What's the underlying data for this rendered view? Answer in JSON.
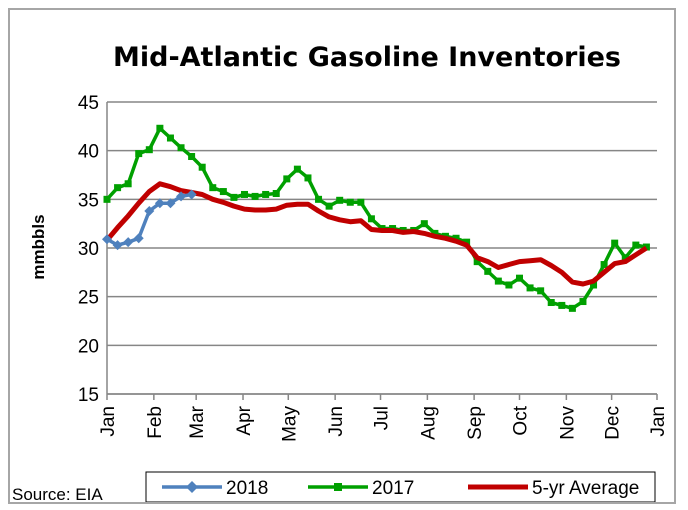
{
  "chart_data": {
    "type": "line",
    "title": "Mid-Atlantic Gasoline Inventories",
    "ylabel": "mmbbls",
    "xlabel": "",
    "ylim": [
      15,
      45
    ],
    "yticks": [
      15,
      20,
      25,
      30,
      35,
      40,
      45
    ],
    "xlim": [
      0,
      52
    ],
    "xtick_labels": [
      "Jan",
      "Feb",
      "Mar",
      "Apr",
      "May",
      "Jun",
      "Jul",
      "Aug",
      "Sep",
      "Oct",
      "Nov",
      "Dec",
      "Jan"
    ],
    "xtick_weeks": [
      0,
      4.43,
      8.43,
      12.86,
      17.14,
      21.57,
      25.86,
      30.29,
      34.71,
      39,
      43.43,
      47.71,
      52
    ],
    "grid": true,
    "legend_position": "bottom",
    "source": "Source: EIA",
    "series": [
      {
        "name": "2018",
        "color": "#4f81bd",
        "marker": "diamond",
        "x": [
          0,
          1,
          2,
          3,
          4,
          5,
          6,
          7,
          8
        ],
        "values": [
          30.9,
          30.3,
          30.6,
          31.0,
          33.8,
          34.6,
          34.6,
          35.3,
          35.5
        ]
      },
      {
        "name": "2017",
        "color": "#00a000",
        "marker": "square",
        "x": [
          0,
          1,
          2,
          3,
          4,
          5,
          6,
          7,
          8,
          9,
          10,
          11,
          12,
          13,
          14,
          15,
          16,
          17,
          18,
          19,
          20,
          21,
          22,
          23,
          24,
          25,
          26,
          27,
          28,
          29,
          30,
          31,
          32,
          33,
          34,
          35,
          36,
          37,
          38,
          39,
          40,
          41,
          42,
          43,
          44,
          45,
          46,
          47,
          48,
          49,
          50,
          51
        ],
        "values": [
          35.0,
          36.2,
          36.6,
          39.7,
          40.1,
          42.3,
          41.3,
          40.3,
          39.4,
          38.3,
          36.2,
          35.8,
          35.2,
          35.5,
          35.3,
          35.5,
          35.6,
          37.1,
          38.1,
          37.2,
          35.0,
          34.3,
          34.9,
          34.7,
          34.7,
          33.0,
          32.0,
          32.0,
          31.8,
          31.8,
          32.5,
          31.5,
          31.2,
          31.0,
          30.6,
          28.6,
          27.6,
          26.6,
          26.2,
          26.9,
          25.9,
          25.6,
          24.4,
          24.1,
          23.8,
          24.5,
          26.2,
          28.3,
          30.5,
          29.0,
          30.3,
          30.1
        ]
      },
      {
        "name": "5-yr Average",
        "color": "#c00000",
        "marker": "none",
        "x": [
          0,
          1,
          2,
          3,
          4,
          5,
          6,
          7,
          8,
          9,
          10,
          11,
          12,
          13,
          14,
          15,
          16,
          17,
          18,
          19,
          20,
          21,
          22,
          23,
          24,
          25,
          26,
          27,
          28,
          29,
          30,
          31,
          32,
          33,
          34,
          35,
          36,
          37,
          38,
          39,
          40,
          41,
          42,
          43,
          44,
          45,
          46,
          47,
          48,
          49,
          50,
          51
        ],
        "values": [
          30.8,
          32.1,
          33.3,
          34.6,
          35.8,
          36.6,
          36.3,
          35.9,
          35.7,
          35.5,
          35.0,
          34.7,
          34.3,
          34.0,
          33.9,
          33.9,
          34.0,
          34.4,
          34.5,
          34.5,
          33.8,
          33.2,
          32.9,
          32.7,
          32.8,
          31.9,
          31.8,
          31.8,
          31.6,
          31.7,
          31.5,
          31.2,
          31.0,
          30.7,
          30.3,
          29.0,
          28.6,
          28.0,
          28.3,
          28.6,
          28.7,
          28.8,
          28.2,
          27.5,
          26.5,
          26.3,
          26.6,
          27.5,
          28.4,
          28.6,
          29.3,
          30.0
        ]
      }
    ]
  }
}
